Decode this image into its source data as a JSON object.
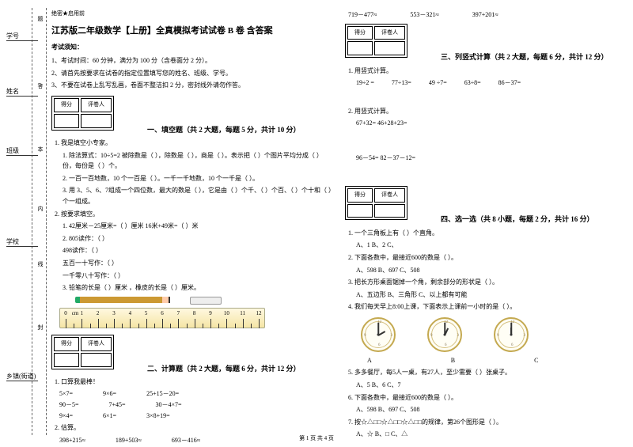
{
  "side": {
    "items": [
      "学号",
      "姓名",
      "班级",
      "学校",
      "乡镇(街道)"
    ],
    "marks": [
      "题",
      "答",
      "本",
      "内",
      "线",
      "封"
    ]
  },
  "secret": "绝密★启用前",
  "title": "江苏版二年级数学【上册】全真模拟考试试卷 B 卷 含答案",
  "notice_h": "考试须知：",
  "notices": [
    "1、考试时间：60 分钟，满分为 100 分（含卷面分 2 分）。",
    "2、请首先按要求在试卷的指定位置填写您的姓名、班级、学号。",
    "3、不要在试卷上乱写乱画，卷面不整洁扣 2 分，密封线外请勿作答。"
  ],
  "scorebox": {
    "c1": "得分",
    "c2": "评卷人"
  },
  "sec1": "一、填空题（共 2 大题，每题 5 分，共计 10 分）",
  "q1": {
    "l1": "1. 我是填空小专家。",
    "a": "1. 除法算式：10÷5=2  被除数是（     ），除数是（     ），商是（     ）。表示把（     ）个图片平均分成（     ）份，每份是（     ）个。",
    "b": "2. 一百一百地数，10 个一百是（     ）。一千一千地数，10 个一千是（     ）。",
    "c": "3. 用 3、5、6、7组成一个四位数，最大的数是（          ），它是由（     ）个千、（     ）个百、（     ）个十和（     ）个一组成。",
    "l2": "2.  按要求填空。",
    "d1": "1.  42厘米－25厘米=（        ）厘米   16米+49米=（        ）米",
    "d2": "2.  805读作：（                ）",
    "d3": "     498读作：（                ）",
    "d4": "     五百一十写作：（                ）",
    "d5": "     一千零八十写作：（                ）",
    "d6": "3.  铅笔的长是（        ）厘米 ，橡皮的长是（        ）厘米。"
  },
  "ruler": {
    "unit": "cm",
    "zero": "0",
    "nums": [
      "1",
      "2",
      "3",
      "4",
      "5",
      "6",
      "7",
      "8",
      "9",
      "10",
      "11",
      "12"
    ]
  },
  "sec2": "二、计算题（共 2 大题，每题 6 分，共计 12 分）",
  "q2": {
    "h": "1. 口算我最棒！",
    "r1": [
      "5×7=",
      "9×6=",
      "25+15－20="
    ],
    "r2": [
      "90－5=",
      "7+45=",
      "30－4×7="
    ],
    "r3": [
      "9×4=",
      "6×1=",
      "3×8+19="
    ],
    "h2": "2. 估算。",
    "r4": [
      "398+215≈",
      "189+503≈",
      "693－416≈"
    ]
  },
  "col2": {
    "r0": [
      "719－477≈",
      "553－321≈",
      "397+201≈"
    ],
    "sec3": "三、列竖式计算（共 2 大题，每题 6 分，共计 12 分）",
    "q3a": "1. 用竖式计算。",
    "r1": [
      "19÷2 =",
      "77÷13=",
      "49 ÷7=",
      "63÷8=",
      "86－37="
    ],
    "q3b": "2. 用竖式计算。",
    "r2a": "67+32=                                46+28+23=",
    "r2b": "96－54=                               82－37－12=",
    "sec4": "四、选一选（共 8 小题，每题 2 分，共计 16 分）",
    "q4_1": "1. 一个三角板上有（     ）个直角。",
    "o4_1": "A、1            B、2            C、",
    "q4_2": "2. 下面各数中，最接近600的数是（     ）。",
    "o4_2": "A、598         B、697         C、508",
    "q4_3": "3. 把长方形桌面锯掉一个角，剩余部分的形状是（     ）。",
    "o4_3": "A、五边形      B、三角形      C、以上都有可能",
    "q4_4": "4. 我们每天早上8:00上课，下面表示上课前一小时的是（     ）。",
    "abc": [
      "A",
      "B",
      "C"
    ],
    "q4_5": "5. 多多餐厅，每5人一桌，有27人，至少需要（     ）张桌子。",
    "o4_5": "A、5            B、6            C、7",
    "q4_6": "6. 下面各数中，最接近600的数是（     ）。",
    "o4_6": "A、598                B、697               C、508",
    "q4_7": "7. 按☆△□□☆△□□☆△□□的规律，第26个图形是（     ）。",
    "o4_7": "A、☆                  B、□                  C、△"
  },
  "footer": "第 1 页 共 4 页"
}
